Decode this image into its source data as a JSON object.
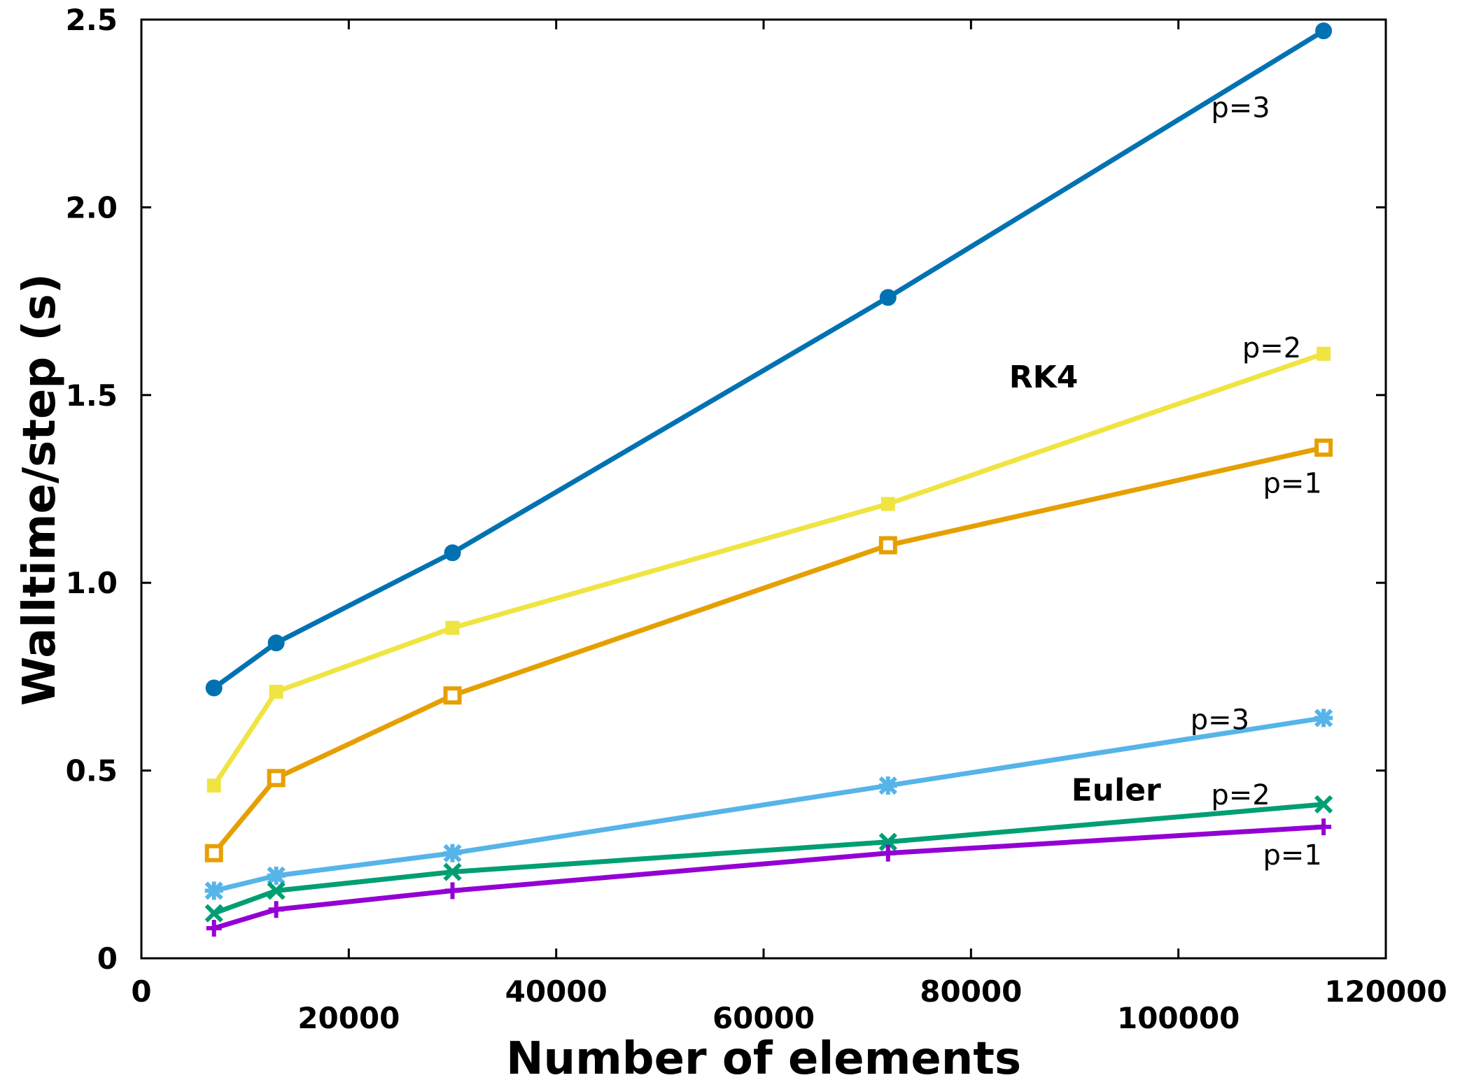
{
  "chart_data": {
    "type": "line",
    "xlabel": "Number of elements",
    "ylabel": "Walltime/step (s)",
    "xlim": [
      0,
      120000
    ],
    "ylim": [
      0,
      2.5
    ],
    "x_ticks": [
      "0",
      "20000",
      "40000",
      "60000",
      "80000",
      "100000",
      "120000"
    ],
    "y_ticks": [
      "0",
      "0.5",
      "1.0",
      "1.5",
      "2.0",
      "2.5"
    ],
    "grid": false,
    "x": [
      7000,
      13000,
      30000,
      72000,
      114000
    ],
    "series": [
      {
        "group": "RK4",
        "marker": "circle",
        "color": "#0072b2",
        "values": [
          0.72,
          0.84,
          1.08,
          1.76,
          2.47
        ]
      },
      {
        "group": "RK4",
        "marker": "filled-square",
        "color": "#f0e442",
        "values": [
          0.46,
          0.71,
          0.88,
          1.21,
          1.61
        ]
      },
      {
        "group": "RK4",
        "marker": "open-square",
        "color": "#e69f00",
        "values": [
          0.28,
          0.48,
          0.7,
          1.1,
          1.36
        ]
      },
      {
        "group": "Euler",
        "marker": "asterisk",
        "color": "#56b4e9",
        "values": [
          0.18,
          0.22,
          0.28,
          0.46,
          0.64
        ]
      },
      {
        "group": "Euler",
        "marker": "x",
        "color": "#009e73",
        "values": [
          0.12,
          0.18,
          0.23,
          0.31,
          0.41
        ]
      },
      {
        "group": "Euler",
        "marker": "plus",
        "color": "#9400d3",
        "values": [
          0.08,
          0.13,
          0.18,
          0.28,
          0.35
        ]
      }
    ],
    "annotations": [
      {
        "text": "p=3",
        "x": 106000,
        "y": 2.24
      },
      {
        "text": "p=2",
        "x": 109000,
        "y": 1.6
      },
      {
        "text": "RK4",
        "x": 87000,
        "y": 1.52
      },
      {
        "text": "p=1",
        "x": 111000,
        "y": 1.24
      },
      {
        "text": "p=3",
        "x": 104000,
        "y": 0.61
      },
      {
        "text": "Euler",
        "x": 94000,
        "y": 0.42
      },
      {
        "text": "p=2",
        "x": 106000,
        "y": 0.41
      },
      {
        "text": "p=1",
        "x": 111000,
        "y": 0.25
      }
    ]
  }
}
